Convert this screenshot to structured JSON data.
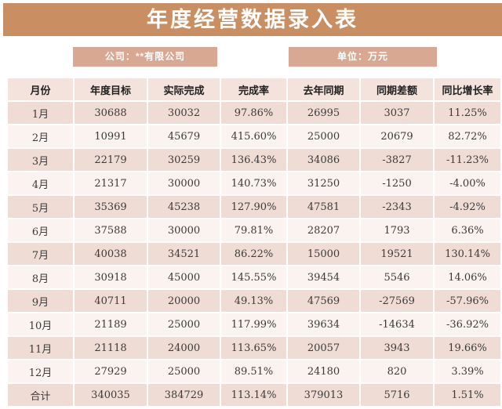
{
  "title": "年度经营数据录入表",
  "meta": {
    "company": "公司：**有限公司",
    "unit": "单位：万元"
  },
  "colors": {
    "title_bg": "#C98F63",
    "meta_bg": "#D8A893",
    "header_bg": "#F4E3DC",
    "row_odd_bg": "#EFDCD4",
    "row_even_bg": "#FAF3EF",
    "text": "#3B3B3B"
  },
  "table": {
    "headers": [
      "月份",
      "年度目标",
      "实际完成",
      "完成率",
      "去年同期",
      "同期差额",
      "同比增长率"
    ],
    "rows": [
      [
        "1月",
        "30688",
        "30032",
        "97.86%",
        "26995",
        "3037",
        "11.25%"
      ],
      [
        "2月",
        "10991",
        "45679",
        "415.60%",
        "25000",
        "20679",
        "82.72%"
      ],
      [
        "3月",
        "22179",
        "30259",
        "136.43%",
        "34086",
        "-3827",
        "-11.23%"
      ],
      [
        "4月",
        "21317",
        "30000",
        "140.73%",
        "31250",
        "-1250",
        "-4.00%"
      ],
      [
        "5月",
        "35369",
        "45238",
        "127.90%",
        "47581",
        "-2343",
        "-4.92%"
      ],
      [
        "6月",
        "37588",
        "30000",
        "79.81%",
        "28207",
        "1793",
        "6.36%"
      ],
      [
        "7月",
        "40038",
        "34521",
        "86.22%",
        "15000",
        "19521",
        "130.14%"
      ],
      [
        "8月",
        "30918",
        "45000",
        "145.55%",
        "39454",
        "5546",
        "14.06%"
      ],
      [
        "9月",
        "40711",
        "20000",
        "49.13%",
        "47569",
        "-27569",
        "-57.96%"
      ],
      [
        "10月",
        "21189",
        "25000",
        "117.99%",
        "39634",
        "-14634",
        "-36.92%"
      ],
      [
        "11月",
        "21118",
        "24000",
        "113.65%",
        "20057",
        "3943",
        "19.66%"
      ],
      [
        "12月",
        "27929",
        "25000",
        "89.51%",
        "24180",
        "820",
        "3.39%"
      ]
    ],
    "total_row": [
      "合计",
      "340035",
      "384729",
      "113.14%",
      "379013",
      "5716",
      "1.51%"
    ]
  }
}
